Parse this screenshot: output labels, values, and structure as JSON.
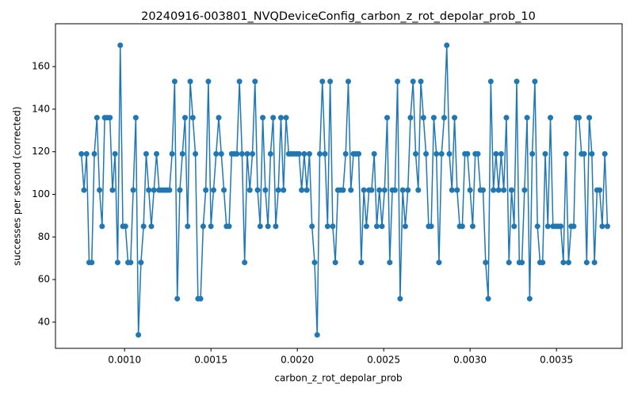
{
  "chart_data": {
    "type": "line",
    "title": "20240916-003801_NVQDeviceConfig_carbon_z_rot_depolar_prob_10",
    "xlabel": "carbon_z_rot_depolar_prob",
    "ylabel": "successes per second (corrected)",
    "x": [
      0.00075,
      0.000765,
      0.00078,
      0.000795,
      0.00081,
      0.000825,
      0.00084,
      0.000855,
      0.00087,
      0.000885,
      0.0009,
      0.000915,
      0.00093,
      0.000945,
      0.00096,
      0.000975,
      0.00099,
      0.001005,
      0.00102,
      0.001035,
      0.00105,
      0.001065,
      0.00108,
      0.001095,
      0.00111,
      0.001125,
      0.00114,
      0.001155,
      0.00117,
      0.001185,
      0.0012,
      0.001215,
      0.00123,
      0.001245,
      0.00126,
      0.001275,
      0.00129,
      0.001305,
      0.00132,
      0.001335,
      0.00135,
      0.001365,
      0.00138,
      0.001395,
      0.00141,
      0.001425,
      0.00144,
      0.001455,
      0.00147,
      0.001485,
      0.0015,
      0.001515,
      0.00153,
      0.001545,
      0.00156,
      0.001575,
      0.00159,
      0.001605,
      0.00162,
      0.001635,
      0.00165,
      0.001665,
      0.00168,
      0.001695,
      0.00171,
      0.001725,
      0.00174,
      0.001755,
      0.00177,
      0.001785,
      0.0018,
      0.001815,
      0.00183,
      0.001845,
      0.00186,
      0.001875,
      0.00189,
      0.001905,
      0.00192,
      0.001935,
      0.00195,
      0.001965,
      0.00198,
      0.001995,
      0.00201,
      0.002025,
      0.00204,
      0.002055,
      0.00207,
      0.002085,
      0.0021,
      0.002115,
      0.00213,
      0.002145,
      0.00216,
      0.002175,
      0.00219,
      0.002205,
      0.00222,
      0.002235,
      0.00225,
      0.002265,
      0.00228,
      0.002295,
      0.00231,
      0.002325,
      0.00234,
      0.002355,
      0.00237,
      0.002385,
      0.0024,
      0.002415,
      0.00243,
      0.002445,
      0.00246,
      0.002475,
      0.00249,
      0.002505,
      0.00252,
      0.002535,
      0.00255,
      0.002565,
      0.00258,
      0.002595,
      0.00261,
      0.002625,
      0.00264,
      0.002655,
      0.00267,
      0.002685,
      0.0027,
      0.002715,
      0.00273,
      0.002745,
      0.00276,
      0.002775,
      0.00279,
      0.002805,
      0.00282,
      0.002835,
      0.00285,
      0.002865,
      0.00288,
      0.002895,
      0.00291,
      0.002925,
      0.00294,
      0.002955,
      0.00297,
      0.002985,
      0.003,
      0.003015,
      0.00303,
      0.003045,
      0.00306,
      0.003075,
      0.00309,
      0.003105,
      0.00312,
      0.003135,
      0.00315,
      0.003165,
      0.00318,
      0.003195,
      0.00321,
      0.003225,
      0.00324,
      0.003255,
      0.00327,
      0.003285,
      0.0033,
      0.003315,
      0.00333,
      0.003345,
      0.00336,
      0.003375,
      0.00339,
      0.003405,
      0.00342,
      0.003435,
      0.00345,
      0.003465,
      0.00348,
      0.003495,
      0.00351,
      0.003525,
      0.00354,
      0.003555,
      0.00357,
      0.003585,
      0.0036,
      0.003615,
      0.00363,
      0.003645,
      0.00366,
      0.003675,
      0.00369,
      0.003705,
      0.00372,
      0.003735,
      0.00375,
      0.003765,
      0.00378,
      0.003795
    ],
    "series": [
      {
        "color": "#1f77b4",
        "values": [
          119,
          102,
          119,
          68,
          68,
          119,
          136,
          102,
          85,
          136,
          136,
          136,
          102,
          119,
          68,
          170,
          85,
          85,
          68,
          68,
          102,
          136,
          34,
          68,
          85,
          119,
          102,
          85,
          102,
          119,
          102,
          102,
          102,
          102,
          102,
          119,
          153,
          51,
          102,
          119,
          136,
          85,
          153,
          136,
          119,
          51,
          51,
          85,
          102,
          153,
          85,
          102,
          119,
          136,
          119,
          102,
          85,
          85,
          119,
          119,
          119,
          153,
          119,
          68,
          119,
          102,
          119,
          153,
          102,
          85,
          136,
          102,
          85,
          119,
          136,
          85,
          102,
          136,
          102,
          136,
          119,
          119,
          119,
          119,
          119,
          102,
          119,
          102,
          119,
          85,
          68,
          34,
          119,
          153,
          119,
          85,
          153,
          85,
          68,
          102,
          102,
          102,
          119,
          153,
          102,
          119,
          119,
          119,
          68,
          102,
          85,
          102,
          102,
          119,
          85,
          102,
          85,
          102,
          136,
          68,
          102,
          102,
          153,
          51,
          102,
          85,
          102,
          136,
          153,
          119,
          102,
          153,
          136,
          119,
          85,
          85,
          136,
          119,
          68,
          119,
          136,
          170,
          119,
          102,
          136,
          102,
          85,
          85,
          119,
          119,
          102,
          85,
          119,
          119,
          102,
          102,
          68,
          51,
          153,
          102,
          119,
          102,
          119,
          102,
          136,
          68,
          102,
          85,
          153,
          68,
          68,
          102,
          136,
          51,
          119,
          153,
          85,
          68,
          68,
          119,
          85,
          136,
          85,
          85,
          85,
          85,
          68,
          119,
          68,
          85,
          85,
          136,
          136,
          119,
          119,
          68,
          136,
          119,
          68,
          102,
          102,
          85,
          119,
          85
        ]
      }
    ],
    "xlim": [
      0.0006,
      0.00388
    ],
    "ylim": [
      27.7,
      180.1
    ],
    "xticks": [
      {
        "value": 0.001,
        "label": "0.0010"
      },
      {
        "value": 0.0015,
        "label": "0.0015"
      },
      {
        "value": 0.002,
        "label": "0.0020"
      },
      {
        "value": 0.0025,
        "label": "0.0025"
      },
      {
        "value": 0.003,
        "label": "0.0030"
      },
      {
        "value": 0.0035,
        "label": "0.0035"
      }
    ],
    "yticks": [
      40,
      60,
      80,
      100,
      120,
      140,
      160
    ]
  }
}
